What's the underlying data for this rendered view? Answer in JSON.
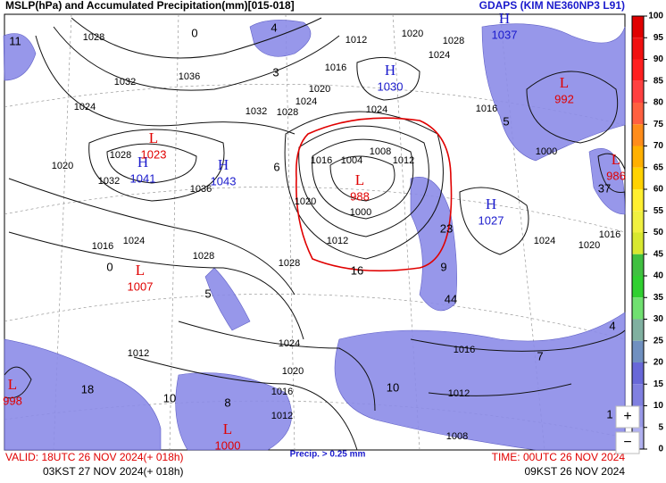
{
  "header": {
    "title": "MSLP(hPa) and Accumulated Precipitation(mm)[015-018]",
    "model": "GDAPS (KIM NE360NP3 L91)"
  },
  "colorbar": {
    "ticks": [
      100,
      95,
      90,
      85,
      80,
      75,
      70,
      65,
      60,
      55,
      50,
      45,
      40,
      35,
      30,
      25,
      20,
      15,
      10,
      5,
      0
    ],
    "colors": [
      "#e00000",
      "#f01010",
      "#ff2020",
      "#ff4040",
      "#ff6040",
      "#ff8c1a",
      "#ffb000",
      "#ffd200",
      "#ffef30",
      "#f0f040",
      "#d8e830",
      "#40c040",
      "#30d030",
      "#70e070",
      "#80b0a0",
      "#7090c0",
      "#6868d8",
      "#8080e0",
      "#9898e8",
      "#b0b0f0"
    ]
  },
  "pressure_systems": [
    {
      "type": "H",
      "value": "1041"
    },
    {
      "type": "H",
      "value": "1043"
    },
    {
      "type": "H",
      "value": "1030"
    },
    {
      "type": "H",
      "value": "1037"
    },
    {
      "type": "H",
      "value": "1027"
    },
    {
      "type": "L",
      "value": "1023"
    },
    {
      "type": "L",
      "value": "1007"
    },
    {
      "type": "L",
      "value": "988"
    },
    {
      "type": "L",
      "value": "992"
    },
    {
      "type": "L",
      "value": "986"
    },
    {
      "type": "L",
      "value": "998"
    },
    {
      "type": "L",
      "value": "1000"
    }
  ],
  "isobar_labels": [
    "1028",
    "1032",
    "1036",
    "1024",
    "1020",
    "1028",
    "1032",
    "1036",
    "1032",
    "1028",
    "1024",
    "1020",
    "1016",
    "1012",
    "1020",
    "1024",
    "1028",
    "1024",
    "1016",
    "1004",
    "1008",
    "1012",
    "1000",
    "1012",
    "1020",
    "1024",
    "1028",
    "1016",
    "1028",
    "1024",
    "1020",
    "1016",
    "1012",
    "1012",
    "1016",
    "1012",
    "1008",
    "1024",
    "1020",
    "1016",
    "1000",
    "1016"
  ],
  "precip_labels": [
    "4",
    "3",
    "6",
    "5",
    "0",
    "10",
    "18",
    "8",
    "10",
    "7",
    "4",
    "1",
    "16",
    "23",
    "9",
    "44",
    "37",
    "11",
    "0",
    "5"
  ],
  "footer": {
    "valid_utc": "VALID: 18UTC 26 NOV 2024(+ 018h)",
    "valid_kst": "03KST 27 NOV 2024(+ 018h)",
    "precip_note": "Precip. > 0.25 mm",
    "time_utc": "TIME: 00UTC 26 NOV 2024",
    "time_kst": "09KST 26 NOV 2024"
  },
  "controls": {
    "zoom_in": "+",
    "zoom_out": "−"
  }
}
